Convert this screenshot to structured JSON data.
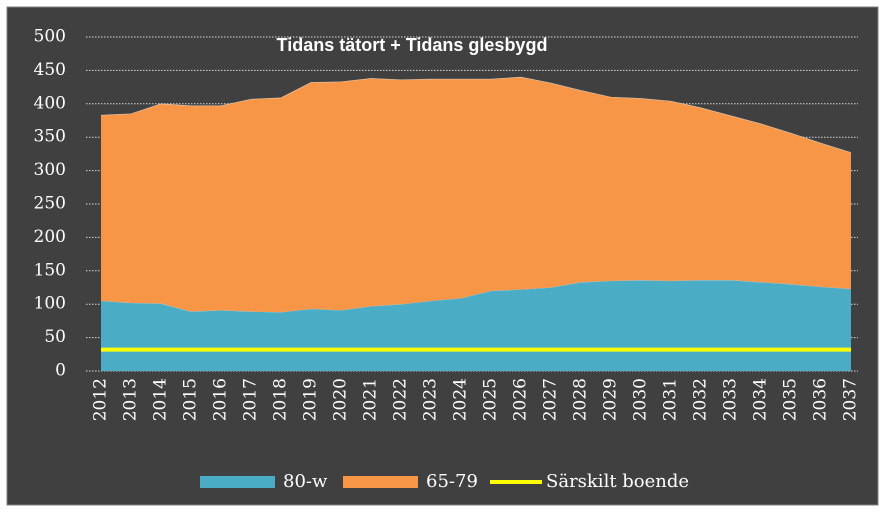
{
  "chart_data": {
    "type": "stacked-area",
    "title": "Tidans tätort + Tidans glesbygd",
    "categories": [
      "2012",
      "2013",
      "2014",
      "2015",
      "2016",
      "2017",
      "2018",
      "2019",
      "2020",
      "2021",
      "2022",
      "2023",
      "2024",
      "2025",
      "2026",
      "2027",
      "2028",
      "2029",
      "2030",
      "2031",
      "2032",
      "2033",
      "2034",
      "2035",
      "2036",
      "2037"
    ],
    "series": [
      {
        "name": "80-w",
        "color": "#4bacc6",
        "values": [
          105,
          102,
          101,
          89,
          91,
          89,
          88,
          93,
          91,
          97,
          100,
          105,
          109,
          120,
          122,
          125,
          133,
          135,
          136,
          135,
          136,
          136,
          133,
          130,
          126,
          123
        ]
      },
      {
        "name": "65-79",
        "color": "#f79646",
        "values": [
          278,
          283,
          299,
          308,
          306,
          318,
          321,
          339,
          342,
          341,
          336,
          332,
          328,
          317,
          318,
          306,
          287,
          275,
          272,
          269,
          258,
          246,
          237,
          226,
          215,
          204
        ]
      },
      {
        "name": "Särskilt boende",
        "color": "#ffff00",
        "type": "line",
        "values": [
          32,
          32,
          32,
          32,
          32,
          32,
          32,
          32,
          32,
          32,
          32,
          32,
          32,
          32,
          32,
          32,
          32,
          32,
          32,
          32,
          32,
          32,
          32,
          32,
          32,
          32
        ]
      }
    ],
    "ylim": [
      0,
      500
    ],
    "yticks": [
      0,
      50,
      100,
      150,
      200,
      250,
      300,
      350,
      400,
      450,
      500
    ],
    "grid": true,
    "legend": "bottom"
  }
}
